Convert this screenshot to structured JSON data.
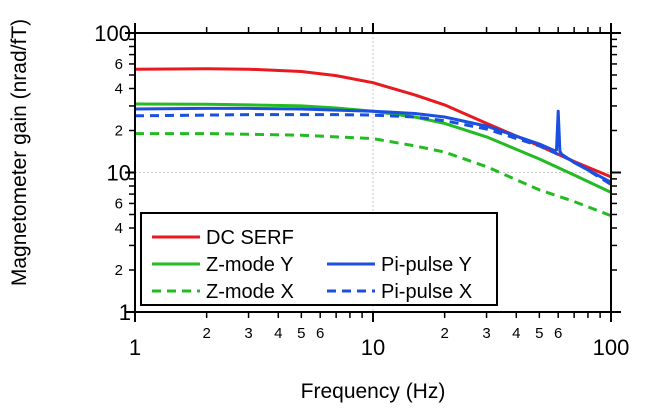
{
  "chart_data": {
    "type": "line",
    "xlabel": "Frequency (Hz)",
    "ylabel": "Magnetometer gain (nrad/fT)",
    "x_scale": "log",
    "y_scale": "log",
    "xlim": [
      1,
      100
    ],
    "ylim": [
      1,
      100
    ],
    "grid": true,
    "x_major_ticks": [
      {
        "value": 1,
        "label": "1"
      },
      {
        "value": 10,
        "label": "10"
      },
      {
        "value": 100,
        "label": "100"
      }
    ],
    "x_minor_ticks": [
      {
        "value": 2,
        "label": "2"
      },
      {
        "value": 3,
        "label": "3"
      },
      {
        "value": 4,
        "label": "4"
      },
      {
        "value": 5,
        "label": "5"
      },
      {
        "value": 6,
        "label": "6"
      },
      {
        "value": 7,
        "label": ""
      },
      {
        "value": 8,
        "label": ""
      },
      {
        "value": 9,
        "label": ""
      },
      {
        "value": 20,
        "label": "2"
      },
      {
        "value": 30,
        "label": "3"
      },
      {
        "value": 40,
        "label": "4"
      },
      {
        "value": 50,
        "label": "5"
      },
      {
        "value": 60,
        "label": "6"
      },
      {
        "value": 70,
        "label": ""
      },
      {
        "value": 80,
        "label": ""
      },
      {
        "value": 90,
        "label": ""
      }
    ],
    "y_major_ticks": [
      {
        "value": 1,
        "label": "1"
      },
      {
        "value": 10,
        "label": "10"
      },
      {
        "value": 100,
        "label": "100"
      }
    ],
    "y_minor_ticks": [
      {
        "value": 2,
        "label": "2"
      },
      {
        "value": 3,
        "label": ""
      },
      {
        "value": 4,
        "label": "4"
      },
      {
        "value": 5,
        "label": ""
      },
      {
        "value": 6,
        "label": "6"
      },
      {
        "value": 7,
        "label": ""
      },
      {
        "value": 8,
        "label": ""
      },
      {
        "value": 9,
        "label": ""
      },
      {
        "value": 20,
        "label": "2"
      },
      {
        "value": 30,
        "label": ""
      },
      {
        "value": 40,
        "label": "4"
      },
      {
        "value": 50,
        "label": ""
      },
      {
        "value": 60,
        "label": "6"
      },
      {
        "value": 70,
        "label": ""
      },
      {
        "value": 80,
        "label": ""
      },
      {
        "value": 90,
        "label": ""
      }
    ],
    "legend": {
      "placement": "bottom-left",
      "items": [
        {
          "label": "DC SERF",
          "series": "dc_serf"
        },
        {
          "label": "Z-mode Y",
          "series": "zmode_y"
        },
        {
          "label": "Z-mode X",
          "series": "zmode_x"
        },
        {
          "label": "Pi-pulse Y",
          "series": "pipulse_y"
        },
        {
          "label": "Pi-pulse X",
          "series": "pipulse_x"
        }
      ]
    },
    "series": [
      {
        "id": "dc_serf",
        "name": "DC SERF",
        "color": "#e8191f",
        "dash": "solid",
        "x": [
          1,
          2,
          3,
          5,
          7,
          10,
          15,
          20,
          30,
          50,
          70,
          100
        ],
        "y": [
          55,
          55.5,
          55,
          53,
          49.5,
          44,
          36,
          30.5,
          22.5,
          15.5,
          12,
          9.3
        ]
      },
      {
        "id": "zmode_y",
        "name": "Z-mode Y",
        "color": "#22bb22",
        "dash": "solid",
        "x": [
          1,
          2,
          3,
          5,
          7,
          10,
          15,
          20,
          30,
          50,
          70,
          100
        ],
        "y": [
          31,
          30.8,
          30.5,
          30,
          29,
          27.5,
          25,
          22.5,
          18,
          12.5,
          9.6,
          7.2
        ]
      },
      {
        "id": "zmode_x",
        "name": "Z-mode X",
        "color": "#22bb22",
        "dash": "dashed",
        "x": [
          1,
          2,
          3,
          5,
          7,
          10,
          15,
          20,
          30,
          50,
          70,
          100
        ],
        "y": [
          19,
          19,
          18.8,
          18.5,
          18,
          17.5,
          15.5,
          14,
          11,
          7.5,
          6.2,
          4.9
        ]
      },
      {
        "id": "pipulse_y",
        "name": "Pi-pulse Y",
        "color": "#1a4fe0",
        "dash": "solid",
        "x": [
          1,
          2,
          3,
          5,
          7,
          10,
          15,
          20,
          30,
          50,
          58,
          59,
          60,
          61,
          62,
          70,
          100
        ],
        "y": [
          28.5,
          28.8,
          28.8,
          28.5,
          28,
          27.5,
          26.5,
          25,
          21.5,
          16,
          14.3,
          14.5,
          27.5,
          14.2,
          13.5,
          11.8,
          8.5
        ]
      },
      {
        "id": "pipulse_x",
        "name": "Pi-pulse X",
        "color": "#1a4fe0",
        "dash": "dashed",
        "x": [
          1,
          2,
          3,
          5,
          7,
          10,
          15,
          20,
          30,
          50,
          70,
          100
        ],
        "y": [
          25.5,
          25.8,
          26,
          26,
          26,
          25.8,
          25,
          23.5,
          20.5,
          15.5,
          12,
          8.2
        ]
      }
    ]
  }
}
